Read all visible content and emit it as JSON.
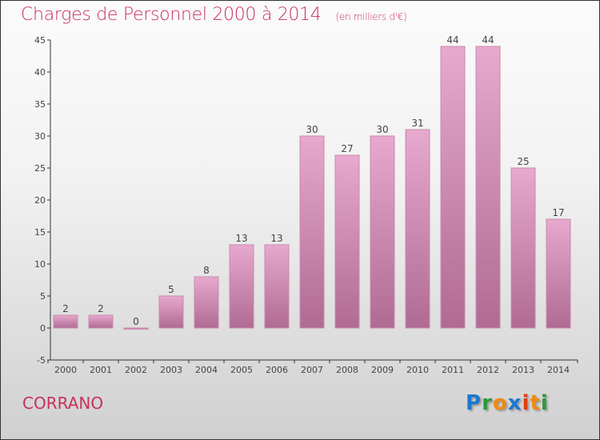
{
  "chart_data": {
    "type": "bar",
    "title": "Charges de Personnel 2000 à 2014",
    "subtitle": "(en milliers d'€)",
    "categories": [
      "2000",
      "2001",
      "2002",
      "2003",
      "2004",
      "2005",
      "2006",
      "2007",
      "2008",
      "2009",
      "2010",
      "2011",
      "2012",
      "2013",
      "2014"
    ],
    "values": [
      2,
      2,
      0,
      5,
      8,
      13,
      13,
      30,
      27,
      30,
      31,
      44,
      44,
      25,
      17
    ],
    "ylim": [
      -5,
      45
    ],
    "yticks": [
      -5,
      0,
      5,
      10,
      15,
      20,
      25,
      30,
      35,
      40,
      45
    ],
    "xlabel": "",
    "ylabel": "",
    "bar_color": "#d58bb4"
  },
  "footer": {
    "city": "CORRANO",
    "logo": "Proxiti"
  }
}
